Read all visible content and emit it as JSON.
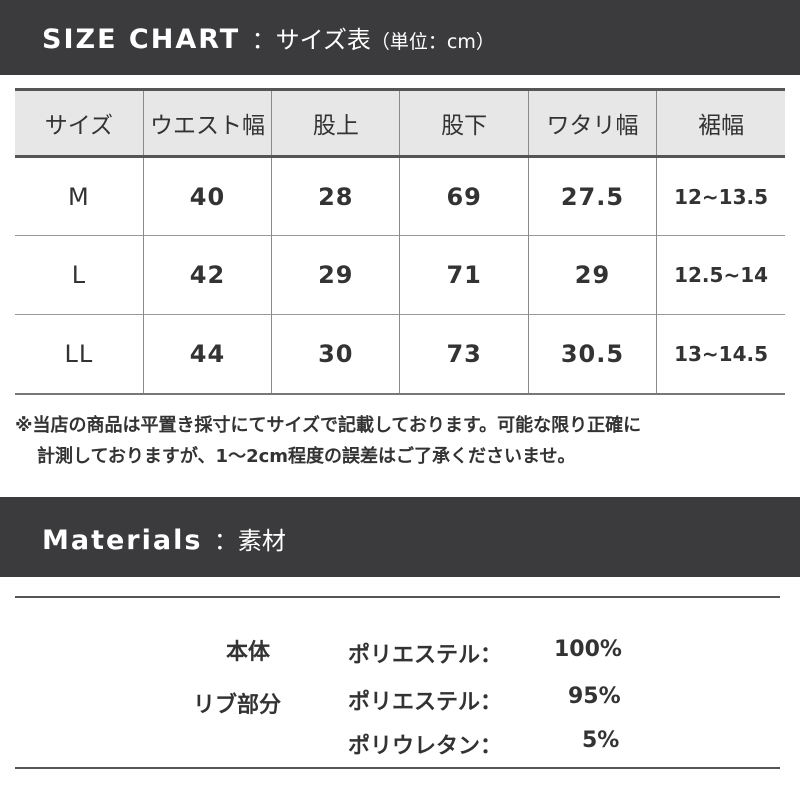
{
  "size_chart": {
    "title": "SIZE CHART",
    "separator": "：",
    "subtitle": "サイズ表",
    "unit": "（単位：cm）",
    "headers": [
      "サイズ",
      "ウエスト幅",
      "股上",
      "股下",
      "ワタリ幅",
      "裾幅"
    ],
    "rows": [
      [
        "M",
        "40",
        "28",
        "69",
        "27.5",
        "12~13.5"
      ],
      [
        "L",
        "42",
        "29",
        "71",
        "29",
        "12.5~14"
      ],
      [
        "LL",
        "44",
        "30",
        "73",
        "30.5",
        "13~14.5"
      ]
    ],
    "note_line1": "※当店の商品は平置き採寸にてサイズで記載しております。可能な限り正確に",
    "note_line2": "計測しておりますが、1〜2cm程度の誤差はご了承くださいませ。"
  },
  "materials": {
    "title": "Materials",
    "separator": "：",
    "subtitle": "素材",
    "body_label": "本体",
    "body_material": "ポリエステル：",
    "body_pct": "100%",
    "rib_label": "リブ部分",
    "rib_material1": "ポリエステル：",
    "rib_pct1": "95%",
    "rib_material2": "ポリウレタン：",
    "rib_pct2": "5%"
  }
}
